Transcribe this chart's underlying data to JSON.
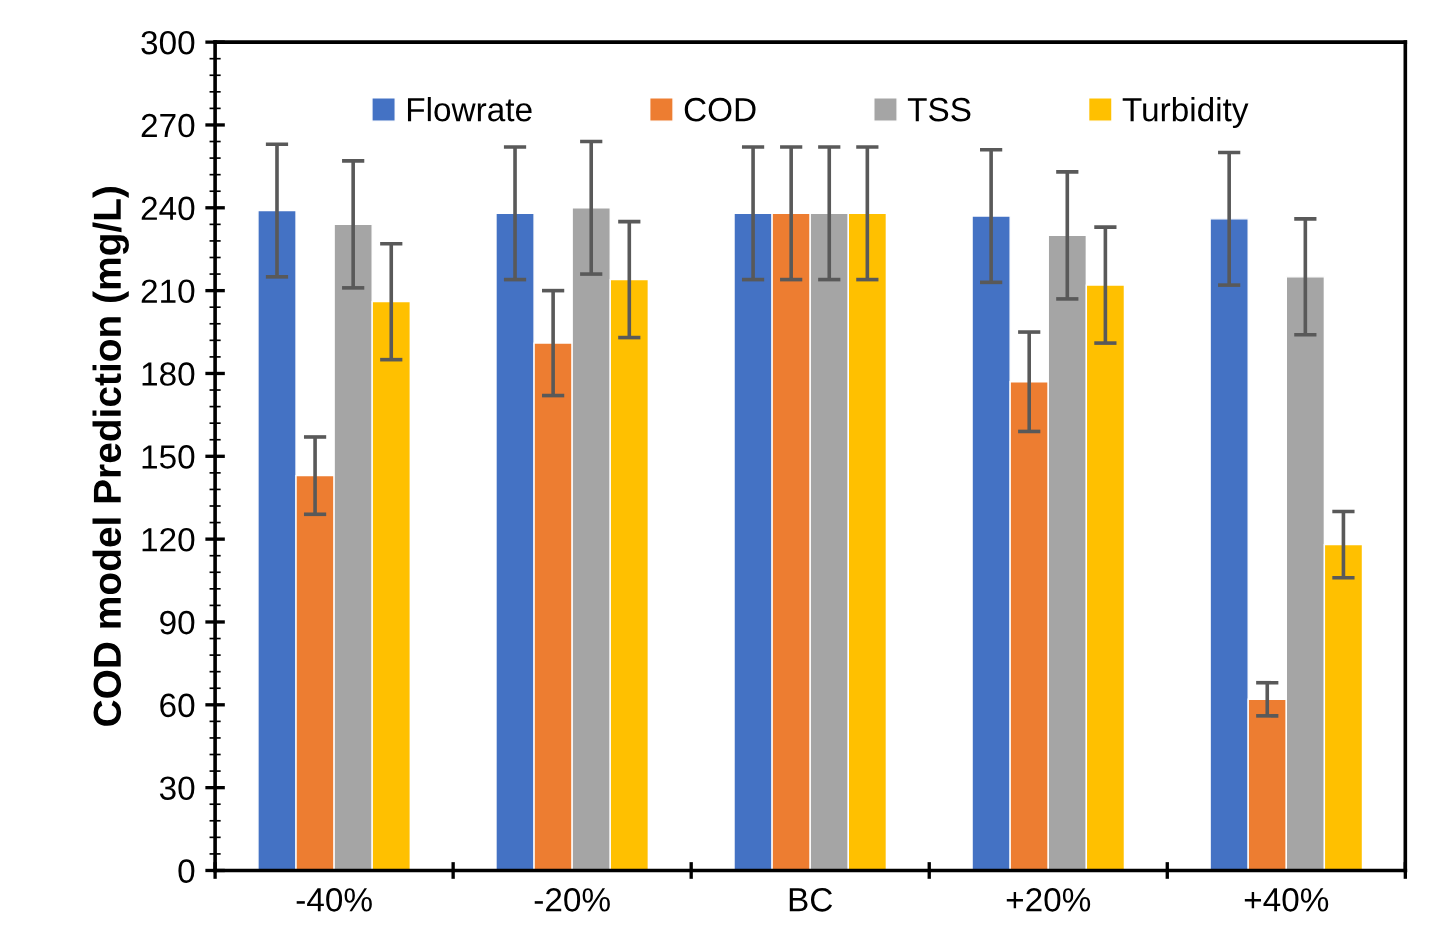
{
  "chart_data": {
    "type": "bar",
    "ylabel": "COD model Prediction (mg/L)",
    "categories": [
      "-40%",
      "-20%",
      "BC",
      "+20%",
      "+40%"
    ],
    "series": [
      {
        "name": "Flowrate",
        "color": "#4472c4",
        "values": [
          239,
          238,
          238,
          237,
          236
        ],
        "errors": [
          24,
          24,
          24,
          24,
          24
        ]
      },
      {
        "name": "COD",
        "color": "#ed7d31",
        "values": [
          143,
          191,
          238,
          177,
          62
        ],
        "errors": [
          14,
          19,
          24,
          18,
          6
        ]
      },
      {
        "name": "TSS",
        "color": "#a5a5a5",
        "values": [
          234,
          240,
          238,
          230,
          215
        ],
        "errors": [
          23,
          24,
          24,
          23,
          21
        ]
      },
      {
        "name": "Turbidity",
        "color": "#ffc000",
        "values": [
          206,
          214,
          238,
          212,
          118
        ],
        "errors": [
          21,
          21,
          24,
          21,
          12
        ]
      }
    ],
    "ylim": [
      0,
      300
    ],
    "yticks": [
      0,
      30,
      60,
      90,
      120,
      150,
      180,
      210,
      240,
      270,
      300
    ],
    "grid": false,
    "legend": "top"
  }
}
